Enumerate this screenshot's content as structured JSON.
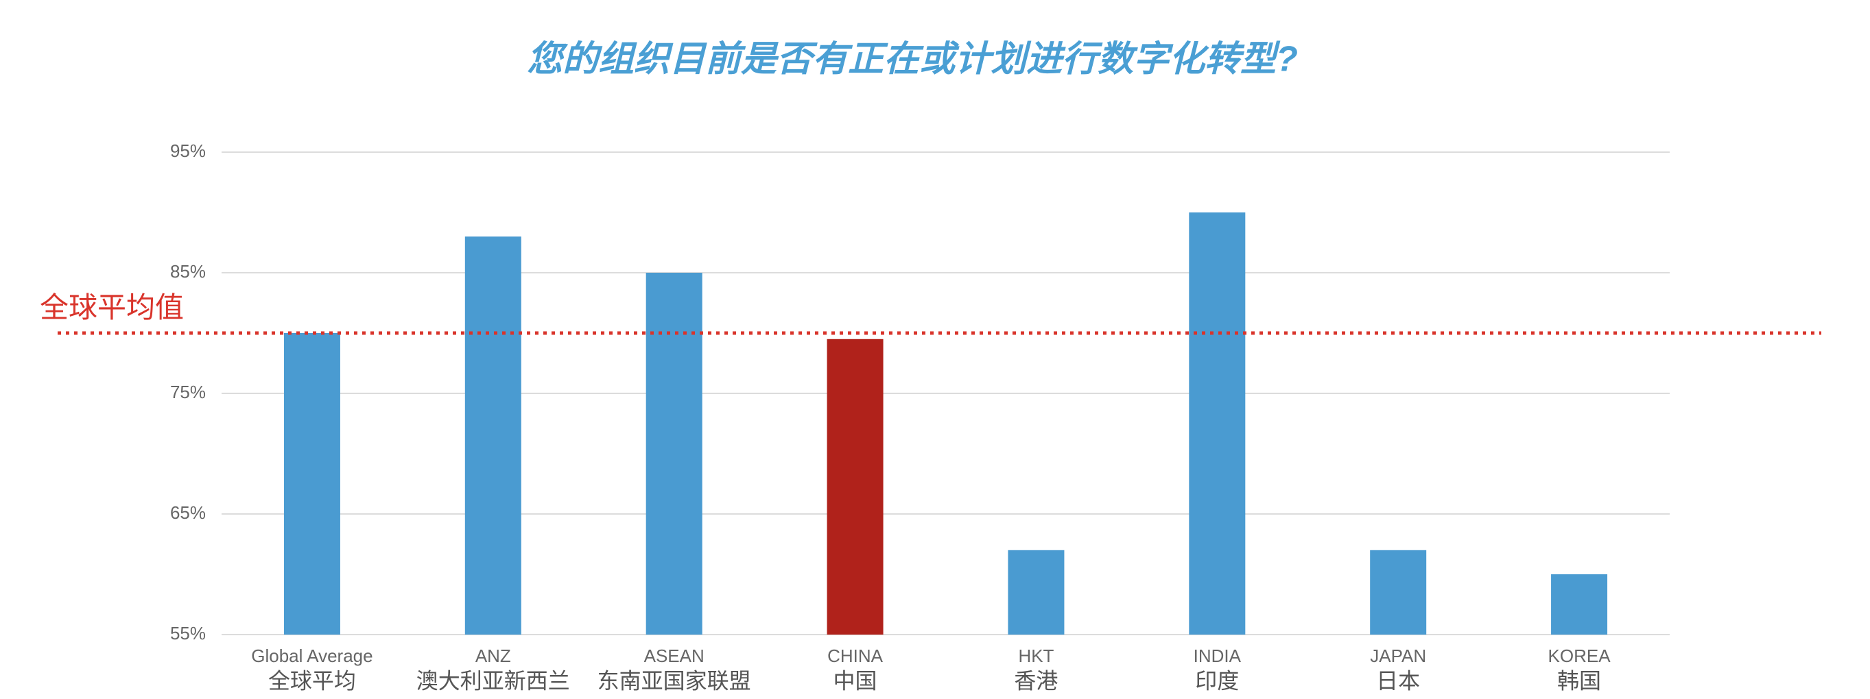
{
  "chart_data": {
    "type": "bar",
    "title": "您的组织目前是否有正在或计划进行数字化转型?",
    "categories": [
      "Global Average",
      "ANZ",
      "ASEAN",
      "CHINA",
      "HKT",
      "INDIA",
      "JAPAN",
      "KOREA"
    ],
    "categories_cn": [
      "全球平均",
      "澳大利亚新西兰",
      "东南亚国家联盟",
      "中国",
      "香港",
      "印度",
      "日本",
      "韩国"
    ],
    "values": [
      80,
      88,
      85,
      79.5,
      62,
      90,
      62,
      60
    ],
    "colors": [
      "#4a9bd1",
      "#4a9bd1",
      "#4a9bd1",
      "#b0221b",
      "#4a9bd1",
      "#4a9bd1",
      "#4a9bd1",
      "#4a9bd1"
    ],
    "ylim": [
      55,
      95
    ],
    "yticks": [
      {
        "value": 55,
        "label": "55%"
      },
      {
        "value": 65,
        "label": "65%"
      },
      {
        "value": 75,
        "label": "75%"
      },
      {
        "value": 85,
        "label": "85%"
      },
      {
        "value": 95,
        "label": "95%"
      }
    ],
    "grid": true,
    "reference_line": {
      "value": 80,
      "label": "全球平均值",
      "color": "#d9342b"
    }
  }
}
